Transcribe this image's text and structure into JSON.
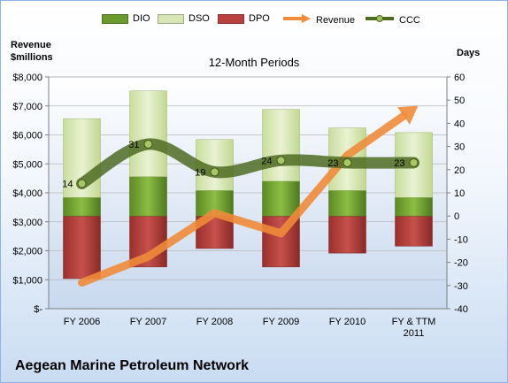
{
  "legend": [
    {
      "label": "DIO",
      "color": "#6b9a2c",
      "kind": "bar"
    },
    {
      "label": "DSO",
      "color": "#d6e6b4",
      "kind": "bar"
    },
    {
      "label": "DPO",
      "color": "#b9413f",
      "kind": "bar"
    },
    {
      "label": "Revenue",
      "color": "#f08b3a",
      "kind": "arrow"
    },
    {
      "label": "CCC",
      "color": "#4f6b22",
      "kind": "line"
    }
  ],
  "left_axis_title": {
    "line1": "Revenue",
    "line2": "$millions"
  },
  "right_axis_title": "Days",
  "subtitle": "12-Month Periods",
  "footer_title": "Aegean Marine Petroleum Network",
  "chart_data": {
    "type": "bar",
    "subtitle": "12-Month Periods",
    "categories": [
      "FY 2006",
      "FY 2007",
      "FY 2008",
      "FY 2009",
      "FY 2010",
      "FY & TTM 2011"
    ],
    "left_axis": {
      "label": "Revenue $millions",
      "min": 0,
      "max": 8000,
      "ticks": [
        "$-",
        "$1,000",
        "$2,000",
        "$3,000",
        "$4,000",
        "$5,000",
        "$6,000",
        "$7,000",
        "$8,000"
      ]
    },
    "right_axis": {
      "label": "Days",
      "min": -40,
      "max": 60,
      "ticks": [
        "-40",
        "-30",
        "-20",
        "-10",
        "0",
        "10",
        "20",
        "30",
        "40",
        "50",
        "60"
      ]
    },
    "series": [
      {
        "name": "DIO",
        "type": "stacked-bar",
        "axis": "right",
        "values": [
          8,
          17,
          11,
          15,
          11,
          8
        ]
      },
      {
        "name": "DSO",
        "type": "stacked-bar",
        "axis": "right",
        "values": [
          34,
          37,
          22,
          31,
          27,
          28
        ]
      },
      {
        "name": "DPO",
        "type": "negative-bar",
        "axis": "right",
        "values": [
          -27,
          -22,
          -14,
          -22,
          -16,
          -13
        ]
      },
      {
        "name": "Revenue",
        "type": "arrow-line",
        "axis": "left",
        "values": [
          900,
          1800,
          3300,
          2600,
          5300,
          6900
        ]
      },
      {
        "name": "CCC",
        "type": "line",
        "axis": "right",
        "values": [
          14,
          31,
          19,
          24,
          23,
          23
        ],
        "labels": [
          "14",
          "31",
          "19",
          "24",
          "23",
          "23"
        ]
      }
    ],
    "x_tick_labels": [
      [
        "FY 2006"
      ],
      [
        "FY 2007"
      ],
      [
        "FY 2008"
      ],
      [
        "FY 2009"
      ],
      [
        "FY 2010"
      ],
      [
        "FY & TTM",
        "2011"
      ]
    ],
    "grid": true,
    "legend_position": "top"
  }
}
